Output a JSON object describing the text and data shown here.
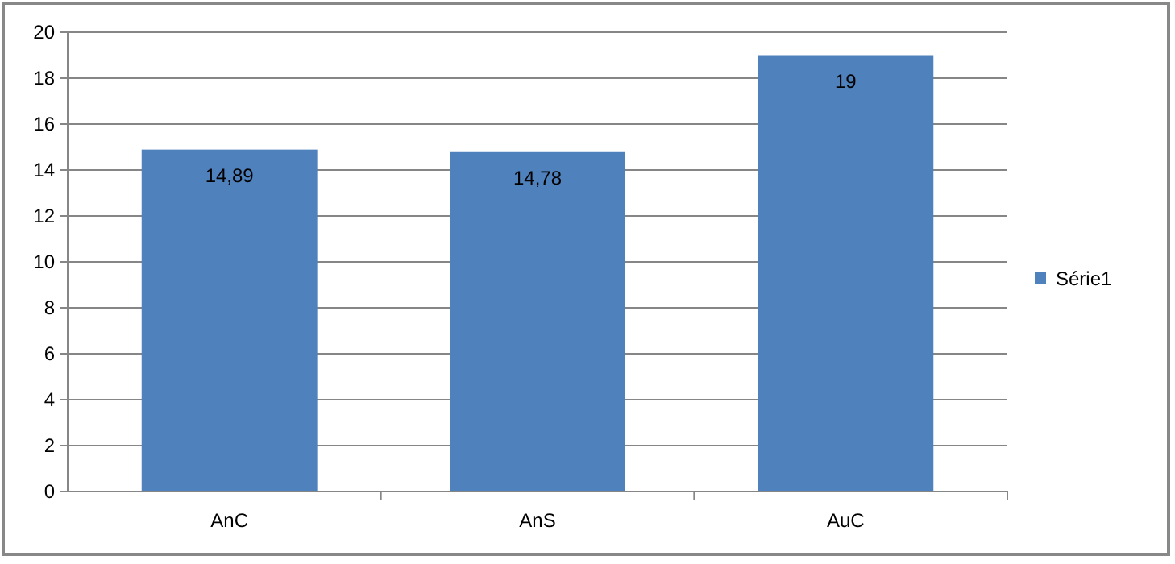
{
  "chart_data": {
    "type": "bar",
    "categories": [
      "AnC",
      "AnS",
      "AuC"
    ],
    "series": [
      {
        "name": "Série1",
        "color": "#4f81bd",
        "values": [
          14.89,
          14.78,
          19
        ],
        "value_labels": [
          "14,89",
          "14,78",
          "19"
        ]
      }
    ],
    "ylim": [
      0,
      20
    ],
    "yticks": [
      0,
      2,
      4,
      6,
      8,
      10,
      12,
      14,
      16,
      18,
      20
    ],
    "grid": "y",
    "legend": "right"
  }
}
